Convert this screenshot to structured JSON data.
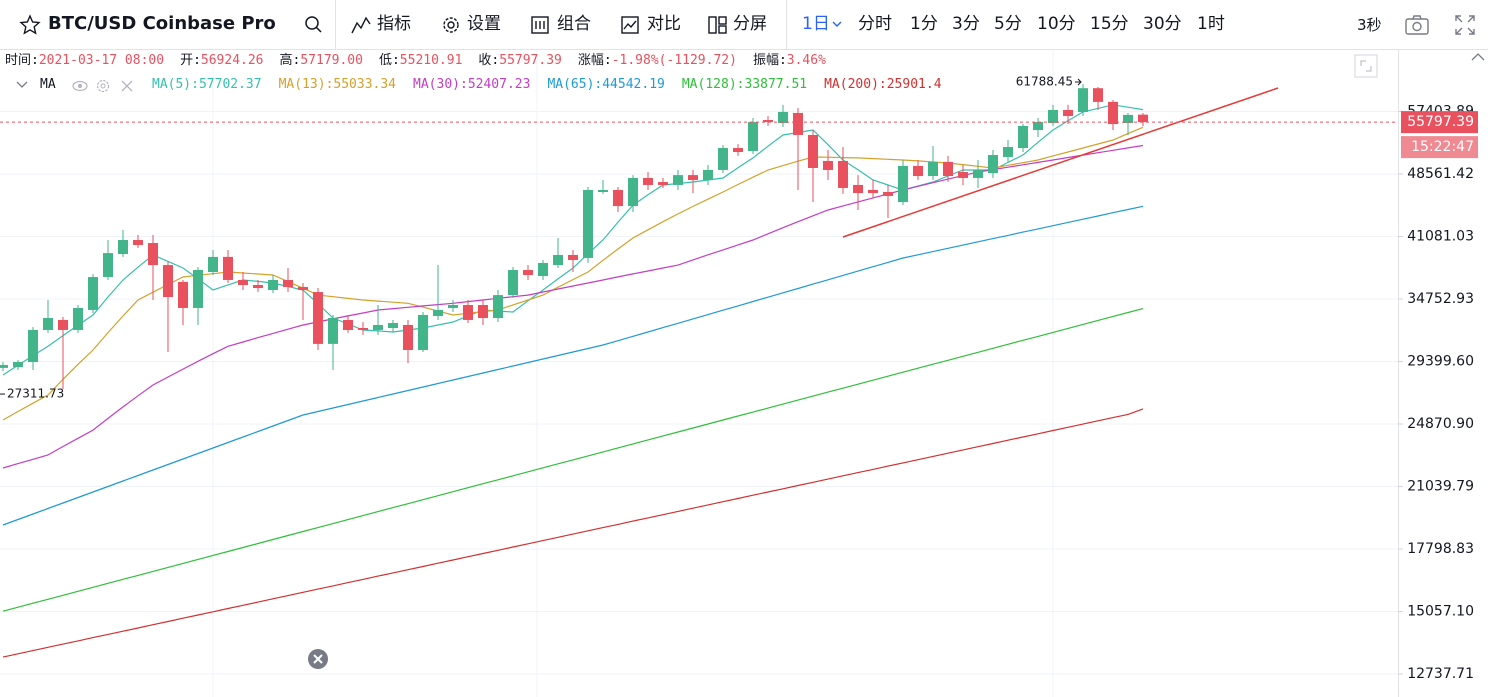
{
  "toolbar": {
    "symbol": "BTC/USD Coinbase Pro",
    "tools": [
      "指标",
      "设置",
      "组合",
      "对比",
      "分屏"
    ],
    "intervals": [
      "1日",
      "分时",
      "1分",
      "3分",
      "5分",
      "10分",
      "15分",
      "30分",
      "1时"
    ],
    "refresh": "3秒"
  },
  "info": [
    {
      "label": "时间:",
      "value": "2021-03-17 08:00"
    },
    {
      "label": "开:",
      "value": "56924.26"
    },
    {
      "label": "高:",
      "value": "57179.00"
    },
    {
      "label": "低:",
      "value": "55210.91"
    },
    {
      "label": "收:",
      "value": "55797.39"
    },
    {
      "label": "涨幅:",
      "value": "-1.98%(-1129.72)"
    },
    {
      "label": "振幅:",
      "value": "3.46%"
    }
  ],
  "chart_data": {
    "type": "candlestick",
    "indicator": "MA",
    "up_color": "#42b58b",
    "down_color": "#e9515e",
    "log_scale": true,
    "grid": true,
    "ylim": [
      12140,
      67676
    ],
    "yticks": [
      57403.89,
      48561.42,
      41081.03,
      34752.93,
      {
        "value": 29399.6,
        "label": "29399.60"
      },
      {
        "value": 24870.9,
        "label": "24870.90"
      },
      21039.79,
      17798.83,
      {
        "value": 15057.1,
        "label": "15057.10"
      },
      12737.71
    ],
    "countdown": "15:22:47",
    "open": [
      28900,
      28970,
      29360,
      31990,
      32860,
      31990,
      33750,
      36860,
      39200,
      40700,
      40370,
      38060,
      36380,
      33930,
      37360,
      38900,
      36570,
      36080,
      35600,
      36570,
      35890,
      35410,
      30820,
      32860,
      32160,
      31990,
      32160,
      32420,
      30320,
      33210,
      33930,
      34200,
      34200,
      33030,
      35120,
      37560,
      36960,
      38060,
      39100,
      38790,
      46280,
      46530,
      44570,
      48050,
      47530,
      47160,
      48420,
      47790,
      49090,
      52060,
      51650,
      56110,
      55660,
      57180,
      53910,
      50290,
      50290,
      47160,
      46530,
      46280,
      45050,
      49620,
      48300,
      50160,
      48820,
      48050,
      48690,
      50830,
      52060,
      54630,
      55660,
      57640,
      57330,
      61100,
      58900,
      55660,
      56924.26
    ],
    "high": [
      29360,
      29520,
      32250,
      34660,
      33120,
      34200,
      37150,
      40700,
      41800,
      41250,
      41250,
      38370,
      36570,
      37860,
      39630,
      39630,
      37360,
      36570,
      37060,
      37760,
      36280,
      35790,
      33300,
      33300,
      32680,
      34200,
      32860,
      32860,
      33570,
      38060,
      34660,
      34660,
      34660,
      35600,
      37860,
      38060,
      38580,
      40920,
      39630,
      46900,
      47790,
      46900,
      48420,
      48820,
      48050,
      49090,
      49090,
      49770,
      52480,
      52610,
      56420,
      56720,
      58440,
      57950,
      54630,
      51790,
      52200,
      48420,
      47790,
      47160,
      50420,
      50420,
      52340,
      50970,
      49770,
      50420,
      51790,
      53190,
      55510,
      56420,
      58440,
      58440,
      61788.45,
      61300,
      59200,
      57180,
      57179
    ],
    "low": [
      28660,
      28740,
      28740,
      31740,
      27311.73,
      31740,
      33480,
      36570,
      38900,
      39840,
      34660,
      30160,
      32420,
      32420,
      37060,
      36280,
      35600,
      35410,
      35320,
      35410,
      32860,
      30320,
      28740,
      31740,
      31570,
      31570,
      31820,
      29270,
      30160,
      32860,
      33570,
      32590,
      32420,
      32680,
      34850,
      36570,
      36570,
      37760,
      37360,
      38270,
      46040,
      43870,
      43870,
      46530,
      46780,
      46530,
      46150,
      47160,
      48690,
      50970,
      51230,
      55220,
      55070,
      46530,
      45050,
      47790,
      46040,
      44100,
      45540,
      43170,
      44690,
      47790,
      47790,
      47530,
      47160,
      46780,
      48050,
      50160,
      51510,
      53620,
      55220,
      55510,
      56720,
      57640,
      54630,
      53910,
      55210.91
    ],
    "close": [
      29130,
      29360,
      31990,
      33030,
      31990,
      33930,
      36860,
      39300,
      40700,
      40160,
      38060,
      34940,
      33930,
      37560,
      38900,
      36570,
      36080,
      35790,
      36570,
      35890,
      35600,
      30820,
      33030,
      31990,
      31990,
      32420,
      32590,
      30320,
      33300,
      33750,
      34200,
      32860,
      33030,
      35120,
      37560,
      37060,
      38270,
      39100,
      38580,
      46530,
      46530,
      44570,
      48050,
      47160,
      47160,
      48420,
      47790,
      49090,
      52060,
      51510,
      55810,
      55810,
      57340,
      53910,
      49350,
      49090,
      46780,
      46150,
      46150,
      45790,
      49620,
      48300,
      50160,
      48300,
      48050,
      49090,
      51090,
      52200,
      55220,
      55810,
      57640,
      56720,
      61100,
      58900,
      55510,
      56880,
      55797.39
    ],
    "series": [
      {
        "name": "MA(5)",
        "color": "#37bfae",
        "values": [
          28360,
          29110,
          29870,
          30620,
          31510,
          32410,
          33300,
          34940,
          36570,
          37840,
          39100,
          38430,
          37760,
          36680,
          35600,
          36090,
          36570,
          36430,
          36280,
          35940,
          35600,
          34320,
          33030,
          32510,
          31990,
          31910,
          31820,
          31990,
          32160,
          32420,
          32680,
          33220,
          33750,
          33660,
          33570,
          34590,
          35600,
          36680,
          37760,
          39230,
          40700,
          42700,
          44690,
          45930,
          47160,
          47350,
          47530,
          47790,
          48050,
          49380,
          50700,
          52310,
          53910,
          54270,
          54630,
          52530,
          50420,
          49110,
          47790,
          47160,
          46530,
          47030,
          47530,
          48310,
          49090,
          49090,
          49090,
          50090,
          51090,
          52860,
          54630,
          55990,
          57340,
          57890,
          58440,
          58070,
          57702.37
        ]
      },
      {
        "name": "MA(13)",
        "color": "#d4a12b",
        "values": [
          25140,
          25720,
          26300,
          26880,
          28030,
          29180,
          30320,
          31770,
          33210,
          34660,
          35390,
          36130,
          36860,
          37030,
          37190,
          37360,
          37260,
          37160,
          37060,
          36410,
          35770,
          35120,
          34970,
          34810,
          34660,
          34560,
          34460,
          34360,
          34010,
          33650,
          33300,
          33450,
          33600,
          33750,
          34210,
          34660,
          35120,
          35870,
          36610,
          37360,
          38550,
          39730,
          40920,
          41830,
          42740,
          43650,
          44530,
          45400,
          46280,
          47220,
          48150,
          49090,
          49670,
          50250,
          50830,
          50790,
          50740,
          50700,
          50610,
          50510,
          50420,
          50290,
          50150,
          50020,
          49800,
          49570,
          49350,
          49710,
          50060,
          50420,
          50970,
          51510,
          52060,
          52630,
          53190,
          54110,
          55033.34
        ]
      },
      {
        "name": "MA(30)",
        "color": "#c43dc4",
        "values": [
          22110,
          22370,
          22630,
          22890,
          23420,
          23940,
          24470,
          25250,
          26040,
          26820,
          27610,
          28210,
          28810,
          29420,
          30020,
          30620,
          30980,
          31340,
          31700,
          32060,
          32420,
          32690,
          32950,
          33220,
          33480,
          33750,
          33870,
          33990,
          34120,
          34240,
          34360,
          34510,
          34660,
          34820,
          34970,
          35120,
          35410,
          35700,
          35990,
          36280,
          36570,
          36870,
          37170,
          37460,
          37760,
          38060,
          38590,
          39120,
          39640,
          40170,
          40700,
          41380,
          42060,
          42740,
          43420,
          44100,
          44590,
          45070,
          45560,
          46040,
          46530,
          46990,
          47450,
          47900,
          48360,
          48820,
          49140,
          49460,
          49780,
          50100,
          50420,
          50750,
          51080,
          51410,
          51740,
          52070,
          52407.23
        ]
      },
      {
        "name": "MA(65)",
        "color": "#1f9ad6",
        "values": [
          18980,
          19261,
          19547,
          19837,
          20131,
          20430,
          20733,
          21040,
          21352,
          21669,
          21990,
          22316,
          22647,
          22983,
          23324,
          23670,
          24021,
          24377,
          24738,
          25105,
          25477,
          25717,
          25959,
          26203,
          26450,
          26699,
          26950,
          27204,
          27460,
          27718,
          27979,
          28242,
          28508,
          28776,
          29047,
          29320,
          29596,
          29875,
          30156,
          30440,
          30726,
          31086,
          31450,
          31818,
          32191,
          32568,
          32949,
          33335,
          33725,
          34120,
          34520,
          34924,
          35333,
          35747,
          36166,
          36589,
          37018,
          37451,
          37890,
          38333,
          38782,
          39119,
          39460,
          39803,
          40149,
          40499,
          40851,
          41206,
          41565,
          41926,
          42291,
          42659,
          43030,
          43404,
          43782,
          44163,
          44542.19
        ]
      },
      {
        "name": "MA(128)",
        "color": "#2fbf3a",
        "values": [
          15070,
          15232,
          15395,
          15560,
          15727,
          15895,
          16066,
          16238,
          16412,
          16588,
          16766,
          16945,
          17127,
          17311,
          17496,
          17684,
          17873,
          18065,
          18258,
          18454,
          18652,
          18852,
          19054,
          19258,
          19464,
          19673,
          19884,
          20097,
          20312,
          20530,
          20750,
          20972,
          21197,
          21424,
          21654,
          21886,
          22120,
          22358,
          22597,
          22839,
          23084,
          23331,
          23581,
          23834,
          24090,
          24348,
          24609,
          24872,
          25139,
          25408,
          25681,
          25956,
          26234,
          26515,
          26800,
          27087,
          27377,
          27671,
          27967,
          28267,
          28570,
          28876,
          29186,
          29499,
          29815,
          30134,
          30457,
          30784,
          31114,
          31447,
          31784,
          32125,
          32469,
          32817,
          33169,
          33524,
          33877.51
        ]
      },
      {
        "name": "MA(200)",
        "color": "#d32f2f",
        "values": [
          13330,
          13446,
          13563,
          13681,
          13800,
          13920,
          14041,
          14163,
          14286,
          14410,
          14535,
          14662,
          14790,
          14918,
          15048,
          15179,
          15311,
          15444,
          15579,
          15714,
          15851,
          15989,
          16128,
          16268,
          16410,
          16553,
          16697,
          16842,
          16988,
          17136,
          17285,
          17436,
          17587,
          17740,
          17895,
          18050,
          18207,
          18366,
          18526,
          18687,
          18849,
          19013,
          19179,
          19345,
          19514,
          19684,
          19855,
          20028,
          20202,
          20378,
          20555,
          20734,
          20914,
          21096,
          21279,
          21464,
          21651,
          21839,
          22029,
          22221,
          22414,
          22609,
          22806,
          23004,
          23204,
          23406,
          23610,
          23815,
          24022,
          24231,
          24442,
          24654,
          24869,
          25085,
          25303,
          25523,
          25901.4
        ]
      }
    ]
  }
}
